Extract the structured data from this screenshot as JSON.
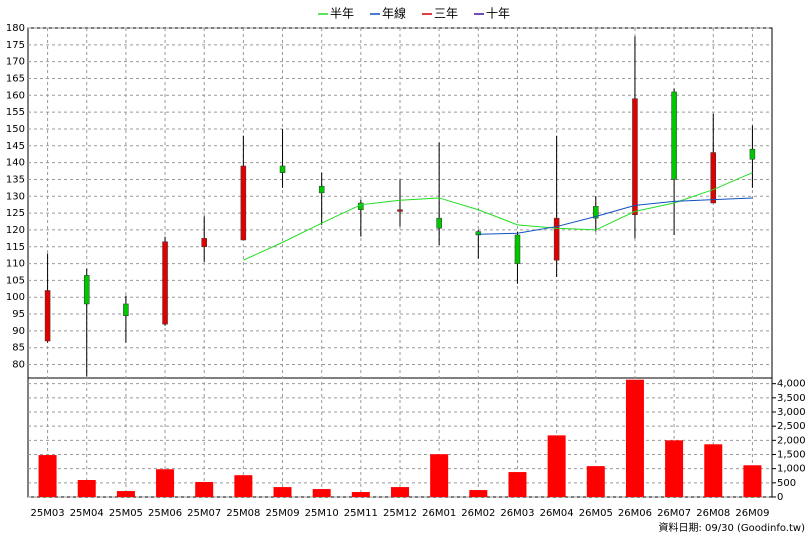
{
  "chart_data": {
    "type": "candlestick",
    "categories": [
      "25M03",
      "25M04",
      "25M05",
      "25M06",
      "25M07",
      "25M08",
      "25M09",
      "25M10",
      "25M11",
      "25M12",
      "26M01",
      "26M02",
      "26M03",
      "26M04",
      "26M05",
      "26M06",
      "26M07",
      "26M08",
      "26M09"
    ],
    "candles": {
      "open": [
        87,
        106.5,
        98,
        92,
        115,
        117,
        139,
        133,
        128,
        125.5,
        123.5,
        119.5,
        118.5,
        111,
        127,
        124.5,
        161,
        128,
        144
      ],
      "high": [
        113,
        108.5,
        100.5,
        118,
        124,
        148,
        150,
        137,
        129,
        135,
        146,
        120,
        119.5,
        148,
        130,
        177.5,
        162,
        154.5,
        151
      ],
      "low": [
        86.5,
        76.5,
        86.5,
        91.5,
        110.5,
        117,
        132.5,
        121.5,
        118,
        121,
        115.5,
        111.5,
        104,
        106,
        119.5,
        117.5,
        118.5,
        128,
        132.5
      ],
      "close": [
        102,
        98,
        94.5,
        116.5,
        117.5,
        139,
        137,
        131,
        126,
        126,
        120.5,
        118.5,
        110,
        123.5,
        123.5,
        159,
        135,
        143,
        141
      ],
      "up_color": "#e00000",
      "down_color": "#00c800"
    },
    "ylim": [
      76,
      180
    ],
    "yticks": [
      80,
      85,
      90,
      95,
      100,
      105,
      110,
      115,
      120,
      125,
      130,
      135,
      140,
      145,
      150,
      155,
      160,
      165,
      170,
      175,
      180
    ],
    "series": [
      {
        "name": "半年",
        "color": "#22dd22",
        "values": [
          null,
          null,
          null,
          null,
          null,
          111,
          116.3,
          122,
          127.5,
          128.8,
          129.5,
          126,
          121.5,
          120.5,
          120,
          125.5,
          128,
          132,
          137
        ]
      },
      {
        "name": "年線",
        "color": "#1050c0",
        "values": [
          null,
          null,
          null,
          null,
          null,
          null,
          null,
          null,
          null,
          null,
          null,
          118.7,
          119,
          121,
          124,
          127.3,
          128.5,
          129,
          129.5
        ]
      },
      {
        "name": "三年",
        "color": "#d00000",
        "values": [
          null,
          null,
          null,
          null,
          null,
          null,
          null,
          null,
          null,
          null,
          null,
          null,
          null,
          null,
          null,
          null,
          null,
          null,
          null
        ]
      },
      {
        "name": "十年",
        "color": "#4010a0",
        "values": [
          null,
          null,
          null,
          null,
          null,
          null,
          null,
          null,
          null,
          null,
          null,
          null,
          null,
          null,
          null,
          null,
          null,
          null,
          null
        ]
      }
    ],
    "volume": {
      "color": "#ff0000",
      "values": [
        1480,
        600,
        210,
        980,
        530,
        770,
        350,
        280,
        175,
        350,
        1510,
        245,
        880,
        2175,
        1090,
        4140,
        2000,
        1860,
        1120
      ],
      "ylim": [
        0,
        4200
      ],
      "yticks": [
        0,
        500,
        {
          "value": 1000,
          "label": "1,000"
        },
        {
          "value": 1500,
          "label": "1,500"
        },
        {
          "value": 2000,
          "label": "2,000"
        },
        {
          "value": 2500,
          "label": "2,500"
        },
        {
          "value": 3000,
          "label": "3,000"
        },
        {
          "value": 3500,
          "label": "3,500"
        },
        {
          "value": 4000,
          "label": "4,000"
        }
      ]
    },
    "grid": true,
    "legend": "top",
    "note": "資料日期: 09/30 (Goodinfo.tw)"
  }
}
